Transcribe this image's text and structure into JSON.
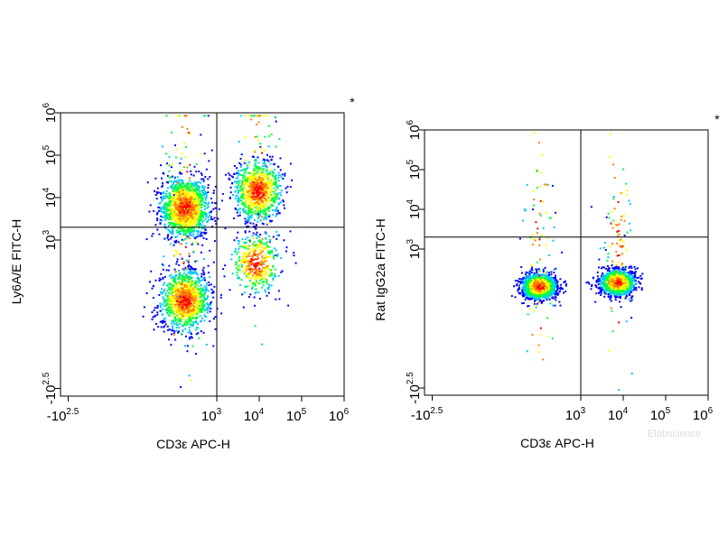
{
  "chart_data": [
    {
      "type": "scatter",
      "subtype": "flow-cytometry-density-dot-plot",
      "marker": "*",
      "xlabel": "CD3ε APC-H",
      "ylabel": "Ly6A/E FITC-H",
      "x_scale": "biexponential",
      "y_scale": "biexponential",
      "x_ticks": [
        {
          "base": "-10",
          "exp": "2.5",
          "value": -316
        },
        {
          "base": "10",
          "exp": "3",
          "value": 1000
        },
        {
          "base": "10",
          "exp": "4",
          "value": 10000
        },
        {
          "base": "10",
          "exp": "5",
          "value": 100000
        },
        {
          "base": "10",
          "exp": "6",
          "value": 1000000
        }
      ],
      "y_ticks": [
        {
          "base": "-10",
          "exp": "2.5",
          "value": -316
        },
        {
          "base": "10",
          "exp": "3",
          "value": 1000
        },
        {
          "base": "10",
          "exp": "4",
          "value": 10000
        },
        {
          "base": "10",
          "exp": "5",
          "value": 100000
        },
        {
          "base": "10",
          "exp": "6",
          "value": 1000000
        }
      ],
      "quadrant_gate": {
        "x": 1000,
        "y": 2000
      },
      "populations": [
        {
          "x": 170,
          "y": 6000,
          "count": 1500
        },
        {
          "x": 170,
          "y": 60,
          "count": 1300
        },
        {
          "x": 9000,
          "y": 15000,
          "count": 1000
        },
        {
          "x": 8000,
          "y": 300,
          "count": 450
        }
      ],
      "palette": [
        "#0000ff",
        "#00c8ff",
        "#00ff40",
        "#ffff00",
        "#ff8000",
        "#ff0000"
      ]
    },
    {
      "type": "scatter",
      "subtype": "flow-cytometry-density-dot-plot",
      "marker": "*",
      "xlabel": "CD3ε APC-H",
      "ylabel": "Rat IgG2a FITC-H",
      "x_scale": "biexponential",
      "y_scale": "biexponential",
      "x_ticks": [
        {
          "base": "-10",
          "exp": "2.5",
          "value": -316
        },
        {
          "base": "10",
          "exp": "3",
          "value": 1000
        },
        {
          "base": "10",
          "exp": "4",
          "value": 10000
        },
        {
          "base": "10",
          "exp": "5",
          "value": 100000
        },
        {
          "base": "10",
          "exp": "6",
          "value": 1000000
        }
      ],
      "y_ticks": [
        {
          "base": "-10",
          "exp": "2.5",
          "value": -316
        },
        {
          "base": "10",
          "exp": "3",
          "value": 1000
        },
        {
          "base": "10",
          "exp": "4",
          "value": 10000
        },
        {
          "base": "10",
          "exp": "5",
          "value": 100000
        },
        {
          "base": "10",
          "exp": "6",
          "value": 1000000
        }
      ],
      "quadrant_gate": {
        "x": 1000,
        "y": 2000
      },
      "populations": [
        {
          "x": 100,
          "y": 120,
          "count": 1700
        },
        {
          "x": 7000,
          "y": 150,
          "count": 1500
        }
      ],
      "palette": [
        "#0000ff",
        "#00c8ff",
        "#00ff40",
        "#ffff00",
        "#ff8000",
        "#ff0000"
      ]
    }
  ],
  "watermark": "Elabscience"
}
